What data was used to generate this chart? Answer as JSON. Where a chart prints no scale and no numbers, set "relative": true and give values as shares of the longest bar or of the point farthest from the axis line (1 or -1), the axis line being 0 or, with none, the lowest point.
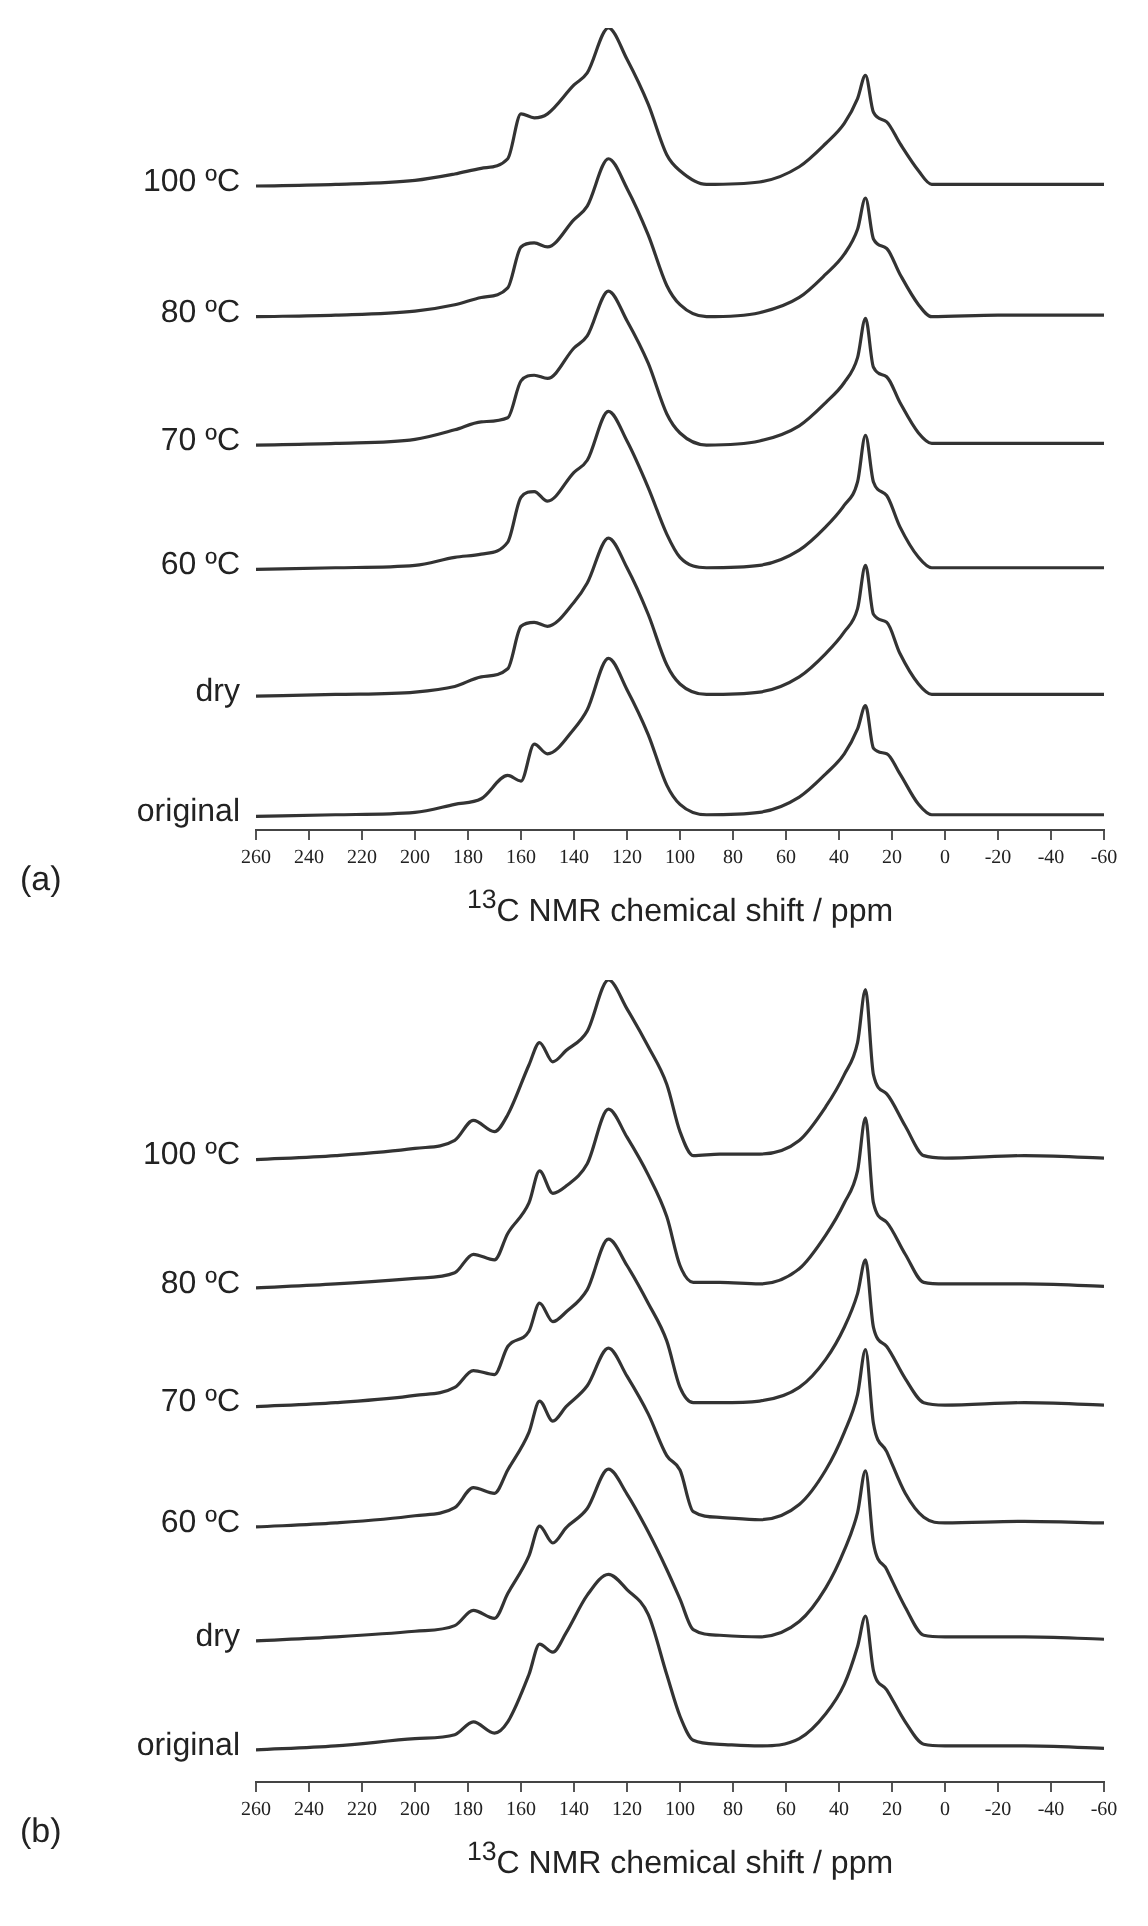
{
  "chart_data": [
    {
      "type": "line",
      "relative": true,
      "xlabel": "$^{13}$C NMR chemical shift / ppm",
      "annotations": [
        "(a)"
      ],
      "xlim": [
        260,
        -60
      ],
      "xticks": [
        260,
        240,
        220,
        200,
        180,
        160,
        140,
        120,
        100,
        80,
        60,
        40,
        20,
        0,
        -20,
        -40,
        -60
      ],
      "legend": false,
      "marker": "none",
      "x": [
        260,
        230,
        200,
        185,
        175,
        165,
        160,
        155,
        150,
        140,
        135,
        127,
        120,
        112,
        105,
        100,
        90,
        70,
        55,
        45,
        38,
        33,
        30,
        27,
        22,
        17,
        10,
        5,
        -20,
        -60
      ],
      "series": [
        {
          "name": "100 ºC",
          "color": "#333333",
          "values": [
            0.803,
            0.805,
            0.81,
            0.818,
            0.825,
            0.837,
            0.893,
            0.888,
            0.893,
            0.929,
            0.944,
            1.0,
            0.961,
            0.905,
            0.842,
            0.822,
            0.805,
            0.808,
            0.827,
            0.856,
            0.881,
            0.912,
            0.941,
            0.895,
            0.883,
            0.856,
            0.822,
            0.805,
            0.805,
            0.805
          ]
        },
        {
          "name": "80 ºC",
          "color": "#333333",
          "values": [
            0.64,
            0.642,
            0.647,
            0.655,
            0.664,
            0.676,
            0.727,
            0.732,
            0.727,
            0.761,
            0.778,
            0.837,
            0.8,
            0.742,
            0.679,
            0.655,
            0.64,
            0.645,
            0.664,
            0.693,
            0.718,
            0.749,
            0.788,
            0.737,
            0.725,
            0.693,
            0.655,
            0.64,
            0.642,
            0.642
          ]
        },
        {
          "name": "70 ºC",
          "color": "#333333",
          "values": [
            0.48,
            0.482,
            0.487,
            0.499,
            0.509,
            0.514,
            0.56,
            0.567,
            0.563,
            0.601,
            0.616,
            0.672,
            0.635,
            0.582,
            0.519,
            0.495,
            0.48,
            0.485,
            0.504,
            0.533,
            0.558,
            0.589,
            0.638,
            0.577,
            0.565,
            0.533,
            0.495,
            0.482,
            0.482,
            0.482
          ]
        },
        {
          "name": "60 ºC",
          "color": "#333333",
          "values": [
            0.325,
            0.327,
            0.33,
            0.34,
            0.344,
            0.359,
            0.415,
            0.422,
            0.41,
            0.446,
            0.461,
            0.522,
            0.485,
            0.427,
            0.369,
            0.34,
            0.327,
            0.33,
            0.349,
            0.378,
            0.405,
            0.434,
            0.492,
            0.434,
            0.417,
            0.378,
            0.34,
            0.327,
            0.327,
            0.327
          ]
        },
        {
          "name": "dry",
          "color": "#333333",
          "values": [
            0.167,
            0.169,
            0.172,
            0.179,
            0.191,
            0.201,
            0.254,
            0.259,
            0.254,
            0.284,
            0.308,
            0.364,
            0.327,
            0.269,
            0.206,
            0.182,
            0.169,
            0.172,
            0.191,
            0.22,
            0.247,
            0.276,
            0.33,
            0.269,
            0.259,
            0.22,
            0.182,
            0.169,
            0.169,
            0.169
          ]
        },
        {
          "name": "original",
          "color": "#333333",
          "values": [
            0.017,
            0.019,
            0.022,
            0.032,
            0.039,
            0.068,
            0.061,
            0.107,
            0.095,
            0.126,
            0.15,
            0.214,
            0.175,
            0.119,
            0.056,
            0.032,
            0.019,
            0.022,
            0.041,
            0.07,
            0.095,
            0.126,
            0.155,
            0.102,
            0.095,
            0.07,
            0.032,
            0.019,
            0.019,
            0.019
          ]
        }
      ]
    },
    {
      "type": "line",
      "relative": true,
      "xlabel": "$^{13}$C NMR chemical shift / ppm",
      "annotations": [
        "(b)"
      ],
      "xlim": [
        260,
        -60
      ],
      "xticks": [
        260,
        240,
        220,
        200,
        180,
        160,
        140,
        120,
        100,
        80,
        60,
        40,
        20,
        0,
        -20,
        -40,
        -60
      ],
      "legend": false,
      "marker": "none",
      "x": [
        260,
        230,
        200,
        185,
        178,
        170,
        165,
        157,
        153,
        148,
        143,
        135,
        127,
        120,
        112,
        105,
        100,
        95,
        85,
        70,
        55,
        45,
        38,
        33,
        30,
        27,
        22,
        15,
        8,
        0,
        -30,
        -60
      ],
      "series": [
        {
          "name": "100 ºC",
          "color": "#333333",
          "values": [
            0.776,
            0.781,
            0.79,
            0.8,
            0.825,
            0.811,
            0.832,
            0.894,
            0.922,
            0.898,
            0.912,
            0.936,
            1.0,
            0.964,
            0.917,
            0.87,
            0.811,
            0.781,
            0.783,
            0.783,
            0.8,
            0.842,
            0.882,
            0.922,
            0.988,
            0.882,
            0.858,
            0.818,
            0.781,
            0.778,
            0.781,
            0.778
          ]
        },
        {
          "name": "80 ºC",
          "color": "#333333",
          "values": [
            0.616,
            0.621,
            0.628,
            0.635,
            0.658,
            0.651,
            0.684,
            0.722,
            0.762,
            0.734,
            0.743,
            0.771,
            0.839,
            0.804,
            0.757,
            0.705,
            0.644,
            0.623,
            0.623,
            0.621,
            0.64,
            0.682,
            0.722,
            0.762,
            0.828,
            0.722,
            0.698,
            0.658,
            0.623,
            0.621,
            0.621,
            0.618
          ]
        },
        {
          "name": "70 ºC",
          "color": "#333333",
          "values": [
            0.468,
            0.473,
            0.482,
            0.492,
            0.513,
            0.508,
            0.543,
            0.562,
            0.597,
            0.574,
            0.586,
            0.614,
            0.677,
            0.644,
            0.597,
            0.55,
            0.492,
            0.473,
            0.473,
            0.475,
            0.492,
            0.527,
            0.567,
            0.609,
            0.651,
            0.567,
            0.543,
            0.503,
            0.473,
            0.47,
            0.473,
            0.47
          ]
        },
        {
          "name": "60 ºC",
          "color": "#333333",
          "values": [
            0.318,
            0.323,
            0.332,
            0.342,
            0.367,
            0.36,
            0.389,
            0.436,
            0.475,
            0.45,
            0.468,
            0.494,
            0.541,
            0.506,
            0.459,
            0.407,
            0.389,
            0.337,
            0.33,
            0.327,
            0.346,
            0.389,
            0.436,
            0.483,
            0.539,
            0.447,
            0.412,
            0.36,
            0.33,
            0.323,
            0.325,
            0.323
          ]
        },
        {
          "name": "dry",
          "color": "#333333",
          "values": [
            0.176,
            0.181,
            0.188,
            0.195,
            0.214,
            0.204,
            0.235,
            0.282,
            0.319,
            0.298,
            0.317,
            0.341,
            0.39,
            0.359,
            0.312,
            0.265,
            0.228,
            0.19,
            0.183,
            0.181,
            0.2,
            0.242,
            0.289,
            0.336,
            0.388,
            0.298,
            0.265,
            0.218,
            0.183,
            0.181,
            0.181,
            0.178
          ]
        },
        {
          "name": "original",
          "color": "#333333",
          "values": [
            0.04,
            0.045,
            0.054,
            0.059,
            0.075,
            0.061,
            0.075,
            0.134,
            0.172,
            0.162,
            0.186,
            0.233,
            0.259,
            0.24,
            0.209,
            0.134,
            0.082,
            0.052,
            0.047,
            0.045,
            0.054,
            0.085,
            0.122,
            0.169,
            0.207,
            0.139,
            0.115,
            0.075,
            0.047,
            0.045,
            0.045,
            0.042
          ]
        }
      ]
    }
  ]
}
